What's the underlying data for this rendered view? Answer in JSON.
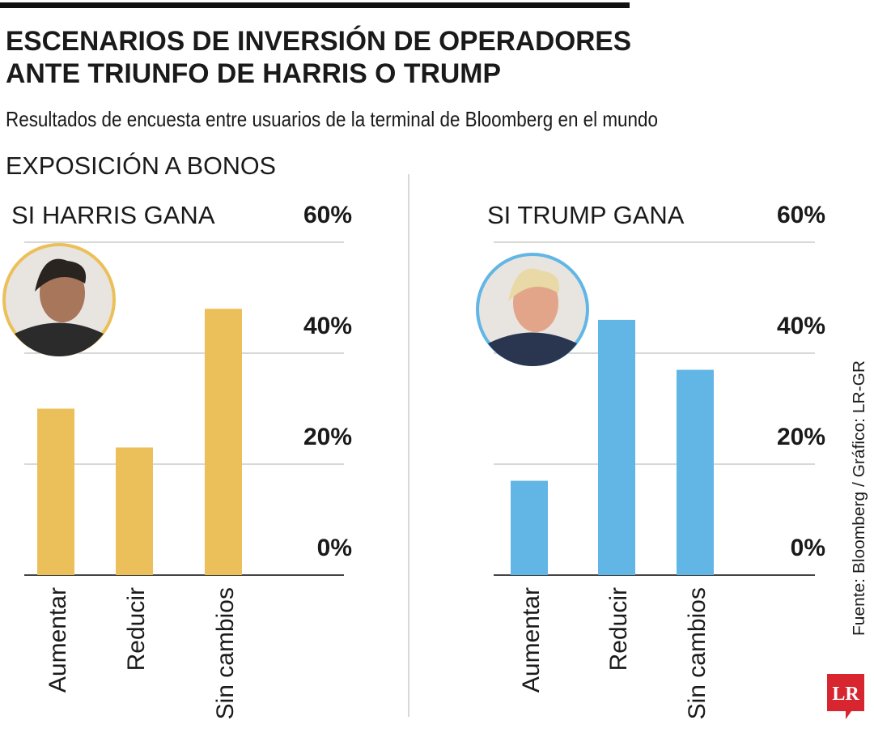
{
  "header": {
    "title": [
      "ESCENARIOS DE INVERSIÓN DE OPERADORES",
      "ANTE TRIUNFO DE HARRIS O TRUMP"
    ],
    "subtitle": "Resultados de encuesta entre usuarios de la terminal de Bloomberg en el mundo",
    "section": "EXPOSICIÓN A BONOS"
  },
  "chart_data": [
    {
      "type": "bar",
      "title": "SI HARRIS GANA",
      "categories": [
        "Aumentar",
        "Reducir",
        "Sin cambios"
      ],
      "values": [
        30,
        23,
        48
      ],
      "color": "#ebc05a",
      "ylim": [
        0,
        60
      ],
      "yticks": [
        {
          "value": 0,
          "label": "0%"
        },
        {
          "value": 20,
          "label": "20%"
        },
        {
          "value": 40,
          "label": "40%"
        },
        {
          "value": 60,
          "label": "60%"
        }
      ],
      "grid": true
    },
    {
      "type": "bar",
      "title": "SI TRUMP GANA",
      "categories": [
        "Aumentar",
        "Reducir",
        "Sin cambios"
      ],
      "values": [
        17,
        46,
        37
      ],
      "color": "#62b6e6",
      "ylim": [
        0,
        60
      ],
      "yticks": [
        {
          "value": 0,
          "label": "0%"
        },
        {
          "value": 20,
          "label": "20%"
        },
        {
          "value": 40,
          "label": "40%"
        },
        {
          "value": 60,
          "label": "60%"
        }
      ],
      "grid": true
    }
  ],
  "source": "Fuente: Bloomberg / Gráfico: LR-GR",
  "logo": "LR"
}
